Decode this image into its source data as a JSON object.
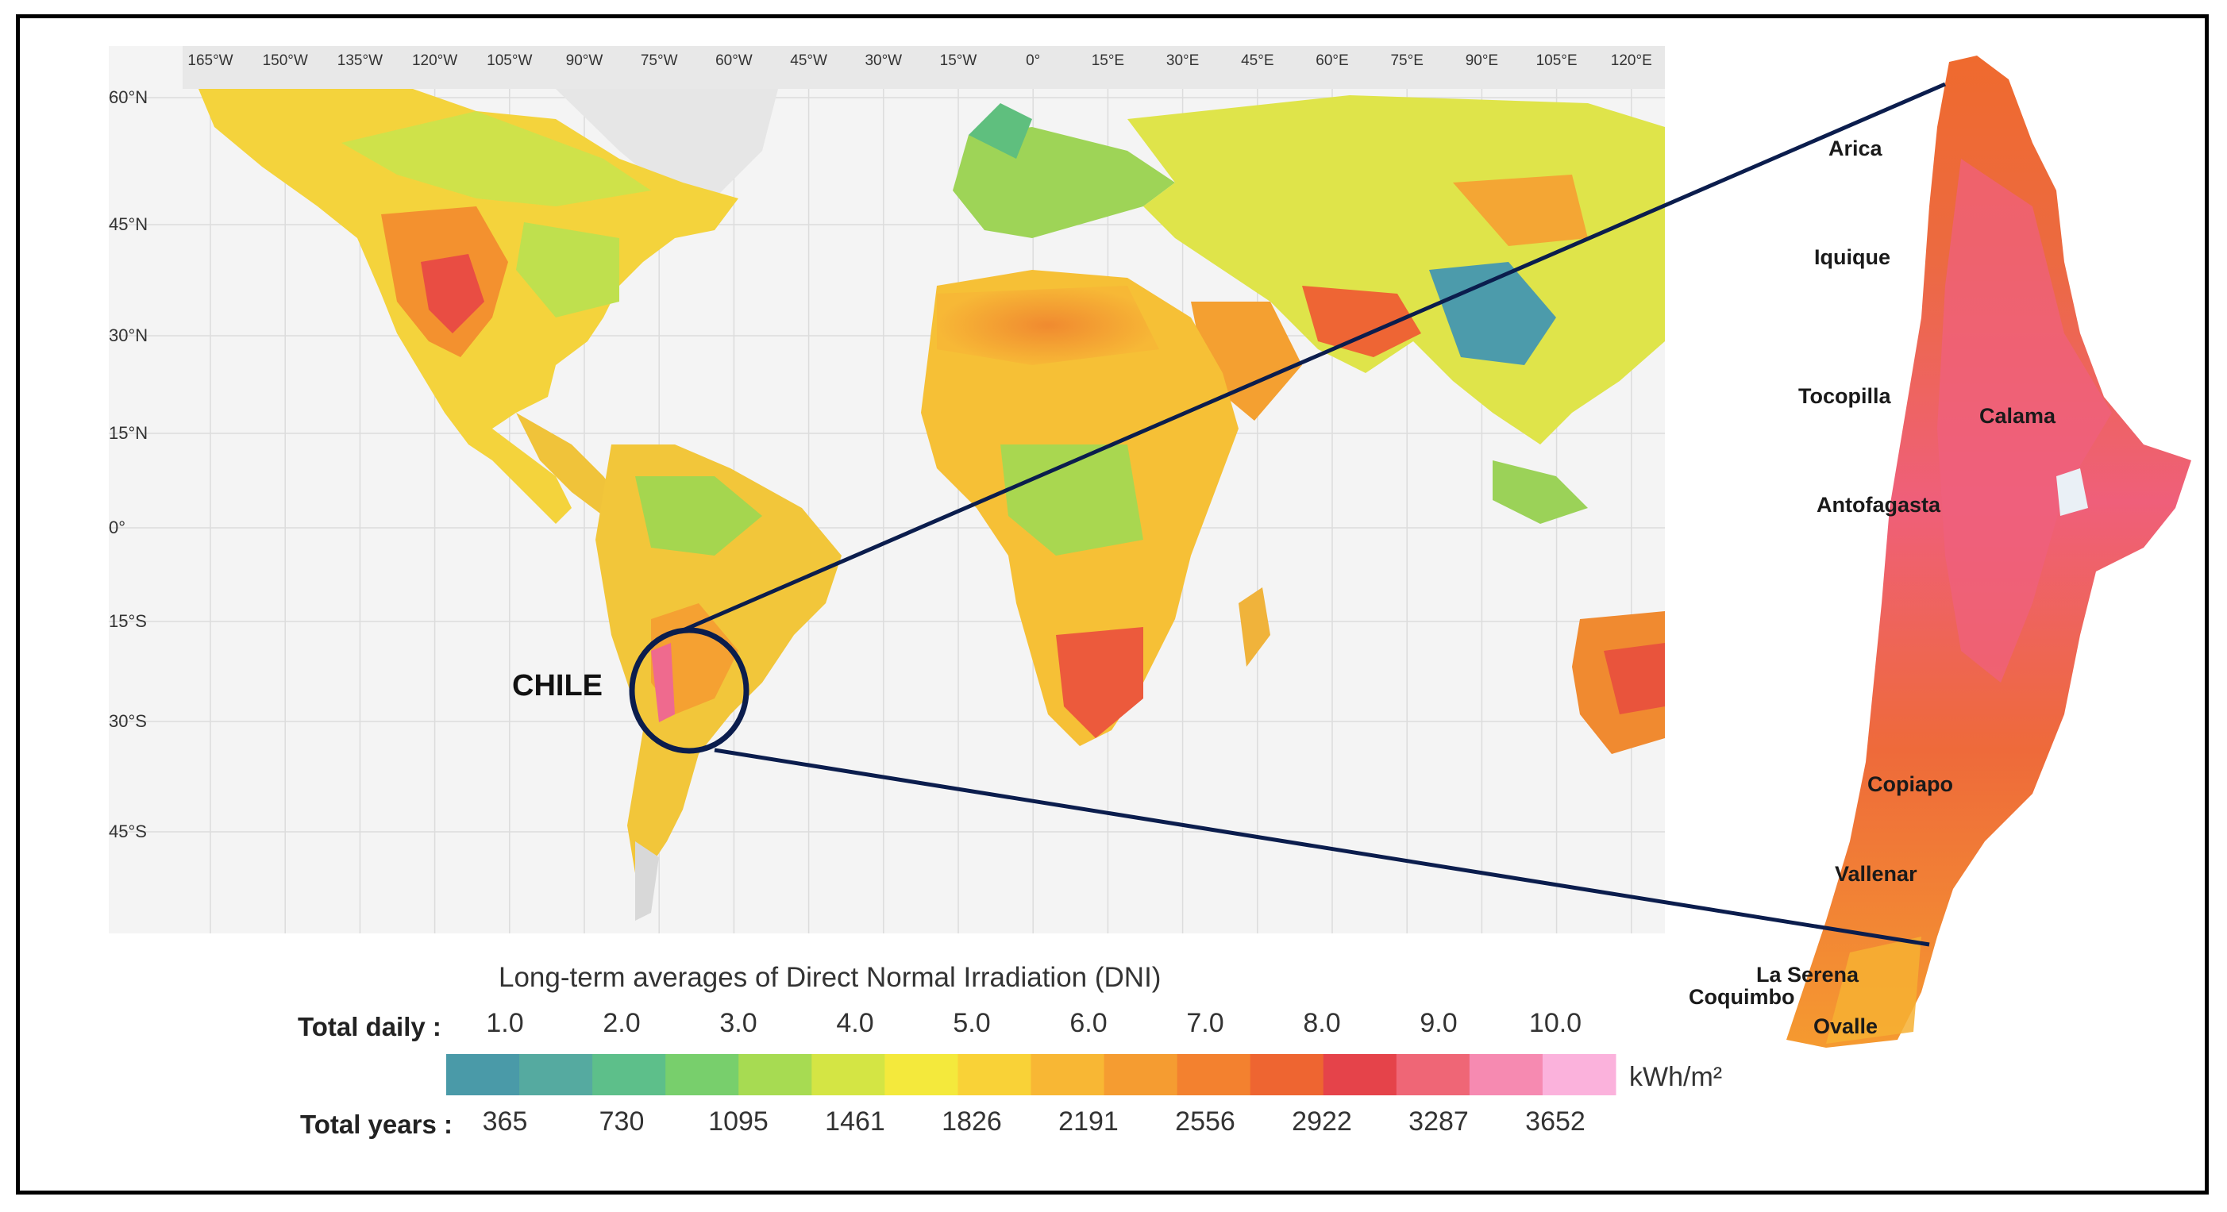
{
  "map": {
    "longitude_labels": [
      "165°W",
      "150°W",
      "135°W",
      "120°W",
      "105°W",
      "90°W",
      "75°W",
      "60°W",
      "45°W",
      "30°W",
      "15°W",
      "0°",
      "15°E",
      "30°E",
      "45°E",
      "60°E",
      "75°E",
      "90°E",
      "105°E",
      "120°E"
    ],
    "latitude_labels": [
      "60°N",
      "45°N",
      "30°N",
      "15°N",
      "0°",
      "15°S",
      "30°S",
      "45°S"
    ],
    "highlight_label": "CHILE"
  },
  "chile_inset": {
    "cities": [
      "Arica",
      "Iquique",
      "Tocopilla",
      "Calama",
      "Antofagasta",
      "Copiapo",
      "Vallenar",
      "La Serena",
      "Coquimbo",
      "Ovalle"
    ]
  },
  "legend": {
    "title": "Long-term averages of Direct Normal Irradiation (DNI)",
    "daily_label": "Total daily :",
    "daily_values": [
      "1.0",
      "2.0",
      "3.0",
      "4.0",
      "5.0",
      "6.0",
      "7.0",
      "8.0",
      "9.0",
      "10.0"
    ],
    "yearly_label": "Total years :",
    "yearly_values": [
      "365",
      "730",
      "1095",
      "1461",
      "1826",
      "2191",
      "2556",
      "2922",
      "3287",
      "3652"
    ],
    "unit": "kWh/m²",
    "colors": [
      "#4a9aa8",
      "#55aaa0",
      "#5dbf8a",
      "#78cf6c",
      "#a7db52",
      "#d4e544",
      "#f4e93c",
      "#f9d237",
      "#f8b734",
      "#f59c31",
      "#f3812f",
      "#ee6531",
      "#e5434a",
      "#ef6676",
      "#f68ab1",
      "#fbb2dc"
    ]
  }
}
